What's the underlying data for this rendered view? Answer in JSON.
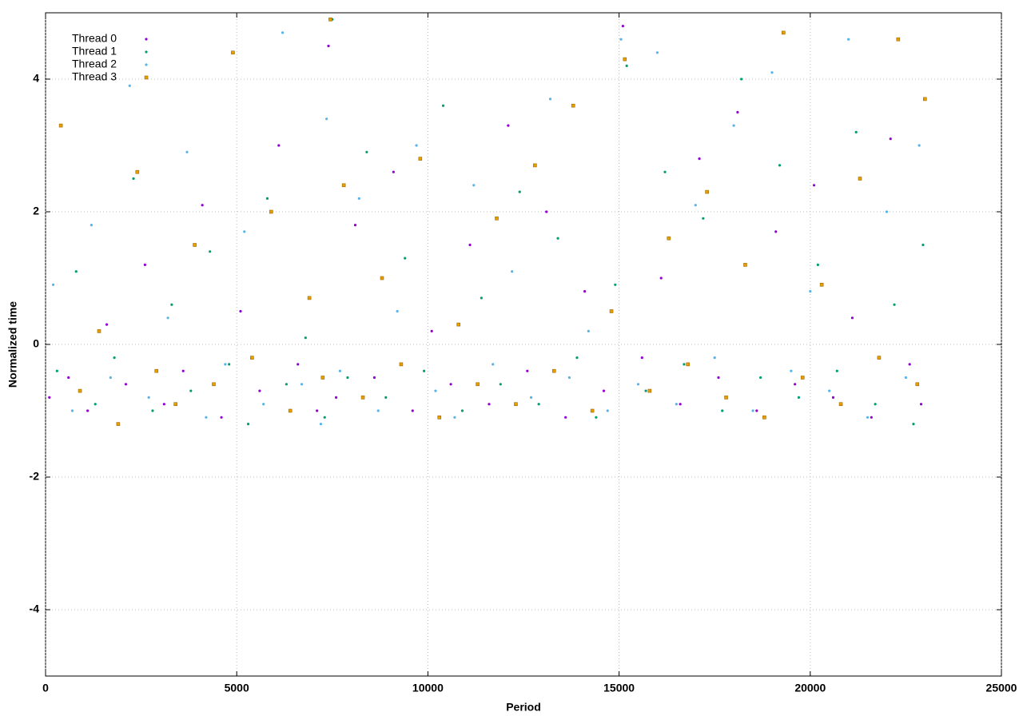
{
  "chart_data": {
    "type": "scatter",
    "x_label": "Period",
    "y_label": "Normalized time",
    "xlim": [
      0,
      25000
    ],
    "ylim": [
      -5,
      5
    ],
    "xticks": [
      0,
      5000,
      10000,
      15000,
      20000,
      25000
    ],
    "yticks": [
      -4,
      -2,
      0,
      2,
      4
    ],
    "grid": true,
    "legend": "top-left",
    "series": [
      {
        "name": "Thread 0",
        "color": "#9400d3",
        "marker": "dot",
        "x": [
          100,
          600,
          1100,
          1600,
          2100,
          2600,
          3100,
          3600,
          4100,
          4600,
          5100,
          5600,
          6100,
          6600,
          7100,
          7400,
          7600,
          8100,
          8600,
          9100,
          9600,
          10100,
          10600,
          11100,
          11600,
          12100,
          12600,
          13100,
          13600,
          14100,
          14600,
          15100,
          15600,
          16100,
          16600,
          17100,
          17600,
          18100,
          18600,
          19100,
          19600,
          20100,
          20600,
          21100,
          21600,
          22100,
          22600,
          22900
        ],
        "values": [
          -0.8,
          -0.5,
          -1.0,
          0.3,
          -0.6,
          1.2,
          -0.9,
          -0.4,
          2.1,
          -1.1,
          0.5,
          -0.7,
          3.0,
          -0.3,
          -1.0,
          4.5,
          -0.8,
          1.8,
          -0.5,
          2.6,
          -1.0,
          0.2,
          -0.6,
          1.5,
          -0.9,
          3.3,
          -0.4,
          2.0,
          -1.1,
          0.8,
          -0.7,
          4.8,
          -0.2,
          1.0,
          -0.9,
          2.8,
          -0.5,
          3.5,
          -1.0,
          1.7,
          -0.6,
          2.4,
          -0.8,
          0.4,
          -1.1,
          3.1,
          -0.3,
          -0.9
        ]
      },
      {
        "name": "Thread 1",
        "color": "#009e73",
        "marker": "dot",
        "x": [
          300,
          800,
          1300,
          1800,
          2300,
          2800,
          3300,
          3800,
          4300,
          4800,
          5300,
          5800,
          6300,
          6800,
          7300,
          7500,
          7900,
          8400,
          8900,
          9400,
          9900,
          10400,
          10900,
          11400,
          11900,
          12400,
          12900,
          13400,
          13900,
          14400,
          14900,
          15200,
          15700,
          16200,
          16700,
          17200,
          17700,
          18200,
          18700,
          19200,
          19700,
          20200,
          20700,
          21200,
          21700,
          22200,
          22700,
          22950
        ],
        "values": [
          -0.4,
          1.1,
          -0.9,
          -0.2,
          2.5,
          -1.0,
          0.6,
          -0.7,
          1.4,
          -0.3,
          -1.2,
          2.2,
          -0.6,
          0.1,
          -1.1,
          4.9,
          -0.5,
          2.9,
          -0.8,
          1.3,
          -0.4,
          3.6,
          -1.0,
          0.7,
          -0.6,
          2.3,
          -0.9,
          1.6,
          -0.2,
          -1.1,
          0.9,
          4.2,
          -0.7,
          2.6,
          -0.3,
          1.9,
          -1.0,
          4.0,
          -0.5,
          2.7,
          -0.8,
          1.2,
          -0.4,
          3.2,
          -0.9,
          0.6,
          -1.2,
          1.5
        ]
      },
      {
        "name": "Thread 2",
        "color": "#56b4e9",
        "marker": "dot",
        "x": [
          200,
          700,
          1200,
          1700,
          2200,
          2700,
          3200,
          3700,
          4200,
          4700,
          5200,
          5700,
          6200,
          6700,
          7200,
          7350,
          7700,
          8200,
          8700,
          9200,
          9700,
          10200,
          10700,
          11200,
          11700,
          12200,
          12700,
          13200,
          13700,
          14200,
          14700,
          15050,
          15500,
          16000,
          16500,
          17000,
          17500,
          18000,
          18500,
          19000,
          19500,
          20000,
          20500,
          21000,
          21500,
          22000,
          22500,
          22850
        ],
        "values": [
          0.9,
          -1.0,
          1.8,
          -0.5,
          3.9,
          -0.8,
          0.4,
          2.9,
          -1.1,
          -0.3,
          1.7,
          -0.9,
          4.7,
          -0.6,
          -1.2,
          3.4,
          -0.4,
          2.2,
          -1.0,
          0.5,
          3.0,
          -0.7,
          -1.1,
          2.4,
          -0.3,
          1.1,
          -0.8,
          3.7,
          -0.5,
          0.2,
          -1.0,
          4.6,
          -0.6,
          4.4,
          -0.9,
          2.1,
          -0.2,
          3.3,
          -1.0,
          4.1,
          -0.4,
          0.8,
          -0.7,
          4.6,
          -1.1,
          2.0,
          -0.5,
          3.0
        ]
      },
      {
        "name": "Thread 3",
        "color": "#e69f00",
        "marker": "square",
        "x": [
          400,
          900,
          1400,
          1900,
          2400,
          2900,
          3400,
          3900,
          4400,
          4900,
          5400,
          5900,
          6400,
          6900,
          7250,
          7450,
          7800,
          8300,
          8800,
          9300,
          9800,
          10300,
          10800,
          11300,
          11800,
          12300,
          12800,
          13300,
          13800,
          14300,
          14800,
          15150,
          15800,
          16300,
          16800,
          17300,
          17800,
          18300,
          18800,
          19300,
          19800,
          20300,
          20800,
          21300,
          21800,
          22300,
          22800,
          23000
        ],
        "values": [
          3.3,
          -0.7,
          0.2,
          -1.2,
          2.6,
          -0.4,
          -0.9,
          1.5,
          -0.6,
          4.4,
          -0.2,
          2.0,
          -1.0,
          0.7,
          -0.5,
          4.9,
          2.4,
          -0.8,
          1.0,
          -0.3,
          2.8,
          -1.1,
          0.3,
          -0.6,
          1.9,
          -0.9,
          2.7,
          -0.4,
          3.6,
          -1.0,
          0.5,
          4.3,
          -0.7,
          1.6,
          -0.3,
          2.3,
          -0.8,
          1.2,
          -1.1,
          4.7,
          -0.5,
          0.9,
          -0.9,
          2.5,
          -0.2,
          4.6,
          -0.6,
          3.7
        ]
      }
    ]
  }
}
